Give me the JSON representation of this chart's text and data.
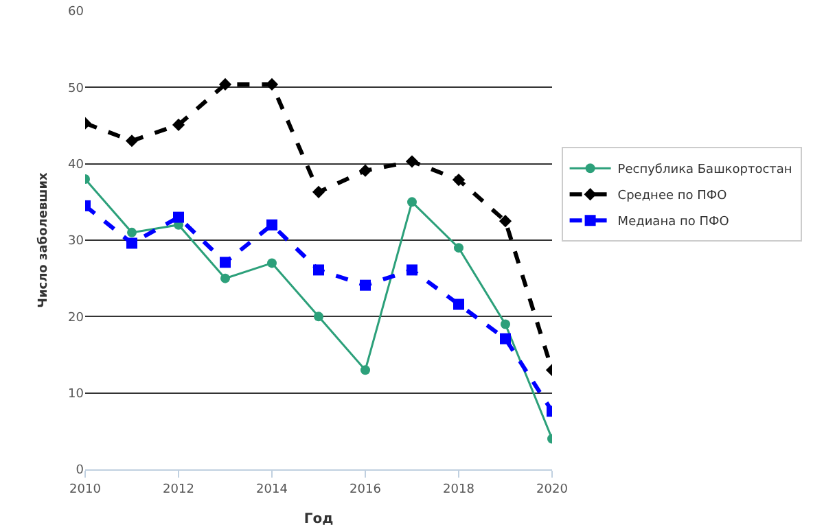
{
  "chart_data": {
    "type": "line",
    "xlabel": "Год",
    "ylabel": "Число заболевших",
    "x": [
      2010,
      2011,
      2012,
      2013,
      2014,
      2015,
      2016,
      2017,
      2018,
      2019,
      2020
    ],
    "series": [
      {
        "name": "Республика Башкортостан",
        "color": "#2ca07a",
        "marker": "circle",
        "line_style": "solid",
        "values": [
          38,
          31,
          32,
          25,
          27,
          20,
          13,
          35,
          29,
          19,
          4
        ]
      },
      {
        "name": "Среднее по ПФО",
        "color": "#000000",
        "marker": "diamond",
        "line_style": "dashed",
        "values": [
          45.3,
          43,
          45.1,
          50.4,
          50.4,
          36.3,
          39.1,
          40.3,
          37.9,
          32.5,
          13
        ]
      },
      {
        "name": "Медиана по ПФО",
        "color": "#0000ff",
        "marker": "square",
        "line_style": "dashed",
        "values": [
          34.5,
          29.6,
          33,
          27.1,
          32,
          26.1,
          24.1,
          26.1,
          21.6,
          17.1,
          7.6
        ]
      }
    ],
    "xlim": [
      2010,
      2020
    ],
    "xticks": [
      2010,
      2012,
      2014,
      2016,
      2018,
      2020
    ],
    "ylim": [
      0,
      60
    ],
    "yticks": [
      0,
      10,
      20,
      30,
      40,
      50,
      60
    ],
    "grid": "y",
    "legend": "right"
  }
}
